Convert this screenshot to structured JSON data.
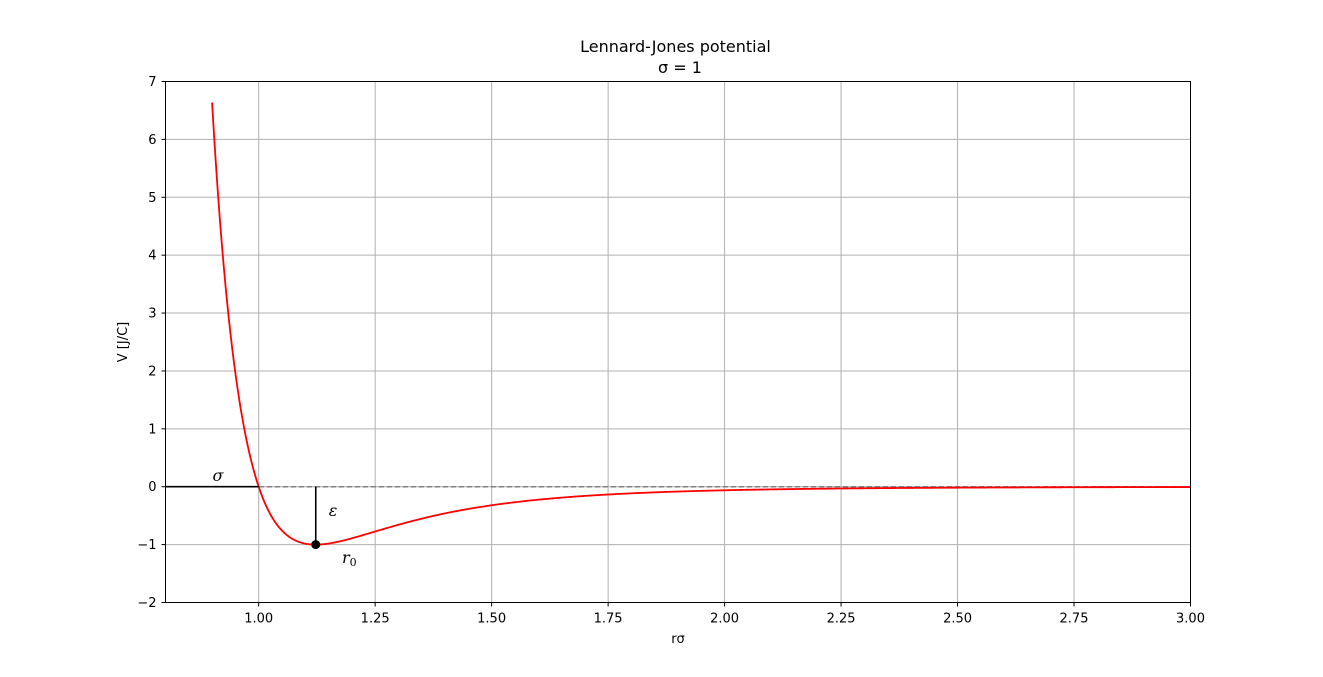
{
  "chart_data": {
    "type": "line",
    "title": "Lennard-Jones potential",
    "subtitle": "σ = 1",
    "xlabel": "rσ",
    "ylabel": "V [J/C]",
    "xlim": [
      0.8,
      3.0
    ],
    "ylim": [
      -2,
      7
    ],
    "grid": true,
    "xticks": [
      1.0,
      1.25,
      1.5,
      1.75,
      2.0,
      2.25,
      2.5,
      2.75,
      3.0
    ],
    "xtick_labels": [
      "1.00",
      "1.25",
      "1.50",
      "1.75",
      "2.00",
      "2.25",
      "2.50",
      "2.75",
      "3.00"
    ],
    "yticks": [
      -2,
      -1,
      0,
      1,
      2,
      3,
      4,
      5,
      6,
      7
    ],
    "ytick_labels": [
      "−2",
      "−1",
      "0",
      "1",
      "2",
      "3",
      "4",
      "5",
      "6",
      "7"
    ],
    "series": [
      {
        "color": "#ff0000",
        "function": "4*((1/r)^12 - (1/r)^6)",
        "x_range": [
          0.9,
          3.0
        ],
        "x": [
          0.9,
          0.95,
          1.0,
          1.05,
          1.1,
          1.12246,
          1.15,
          1.2,
          1.25,
          1.3,
          1.4,
          1.5,
          1.6,
          1.75,
          2.0,
          2.25,
          2.5,
          2.75,
          3.0
        ],
        "values": [
          6.65,
          1.82,
          0.0,
          -0.62,
          -0.98,
          -1.0,
          -0.98,
          -0.89,
          -0.77,
          -0.65,
          -0.45,
          -0.32,
          -0.22,
          -0.13,
          -0.06,
          -0.03,
          -0.016,
          -0.009,
          -0.005
        ]
      }
    ],
    "reference_line": {
      "y": 0,
      "x_range": [
        1.0,
        3.0
      ],
      "style": "dashed",
      "color": "#808080"
    },
    "annotations": [
      {
        "label": "σ",
        "type": "horizontal-segment",
        "x_range": [
          0.8,
          1.0
        ],
        "y": 0
      },
      {
        "label": "ε",
        "type": "vertical-segment",
        "x": 1.12246,
        "y_range": [
          -1,
          0
        ]
      },
      {
        "label": "r",
        "subscript": "0",
        "type": "point",
        "x": 1.12246,
        "y": -1
      }
    ]
  }
}
